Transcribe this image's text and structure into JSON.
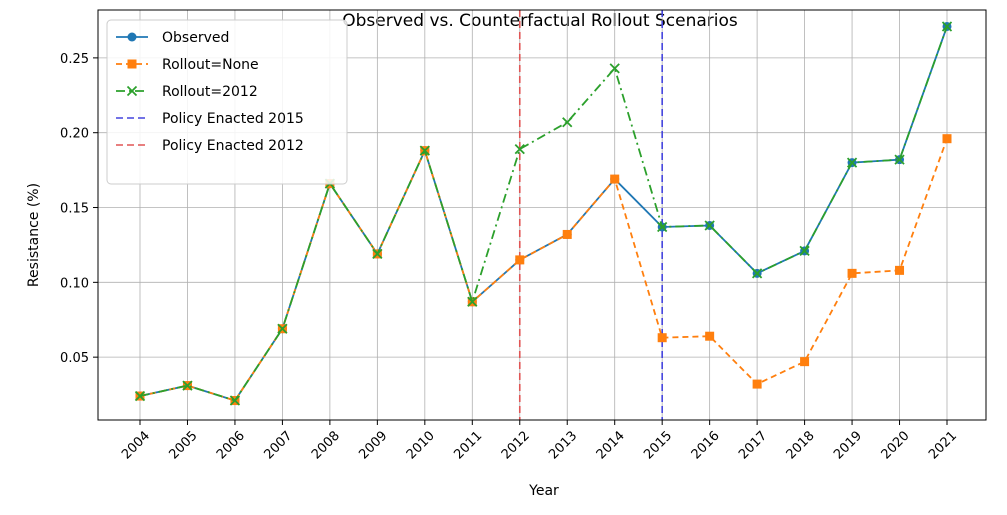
{
  "chart_data": {
    "type": "line",
    "title": "Observed vs. Counterfactual Rollout Scenarios",
    "xlabel": "Year",
    "ylabel": "Resistance (%)",
    "categories": [
      "2004",
      "2005",
      "2006",
      "2007",
      "2008",
      "2009",
      "2010",
      "2011",
      "2012",
      "2013",
      "2014",
      "2015",
      "2016",
      "2017",
      "2018",
      "2019",
      "2020",
      "2021"
    ],
    "ylim": [
      0.008,
      0.282
    ],
    "yticks": [
      0.05,
      0.1,
      0.15,
      0.2,
      0.25
    ],
    "ytick_labels": [
      "0.05",
      "0.10",
      "0.15",
      "0.20",
      "0.25"
    ],
    "grid": true,
    "legend_position": "top-left",
    "series": [
      {
        "name": "Observed",
        "color": "#1f77b4",
        "style": "solid",
        "marker": "circle",
        "values": [
          0.024,
          0.031,
          0.021,
          0.069,
          0.166,
          0.119,
          0.188,
          0.087,
          0.115,
          0.132,
          0.169,
          0.137,
          0.138,
          0.106,
          0.121,
          0.18,
          0.182,
          0.271
        ]
      },
      {
        "name": "Rollout=None",
        "color": "#ff7f0e",
        "style": "dashed",
        "marker": "square",
        "values": [
          0.024,
          0.031,
          0.021,
          0.069,
          0.166,
          0.119,
          0.188,
          0.087,
          0.115,
          0.132,
          0.169,
          0.063,
          0.064,
          0.032,
          0.047,
          0.106,
          0.108,
          0.196
        ]
      },
      {
        "name": "Rollout=2012",
        "color": "#2ca02c",
        "style": "dashdot",
        "marker": "x",
        "values": [
          0.024,
          0.031,
          0.021,
          0.069,
          0.166,
          0.119,
          0.188,
          0.087,
          0.189,
          0.207,
          0.243,
          0.137,
          0.138,
          0.106,
          0.121,
          0.18,
          0.182,
          0.271
        ]
      }
    ],
    "vlines": [
      {
        "name": "Policy Enacted 2015",
        "x": "2015",
        "color": "#4444dd"
      },
      {
        "name": "Policy Enacted 2012",
        "x": "2012",
        "color": "#e05555"
      }
    ]
  }
}
